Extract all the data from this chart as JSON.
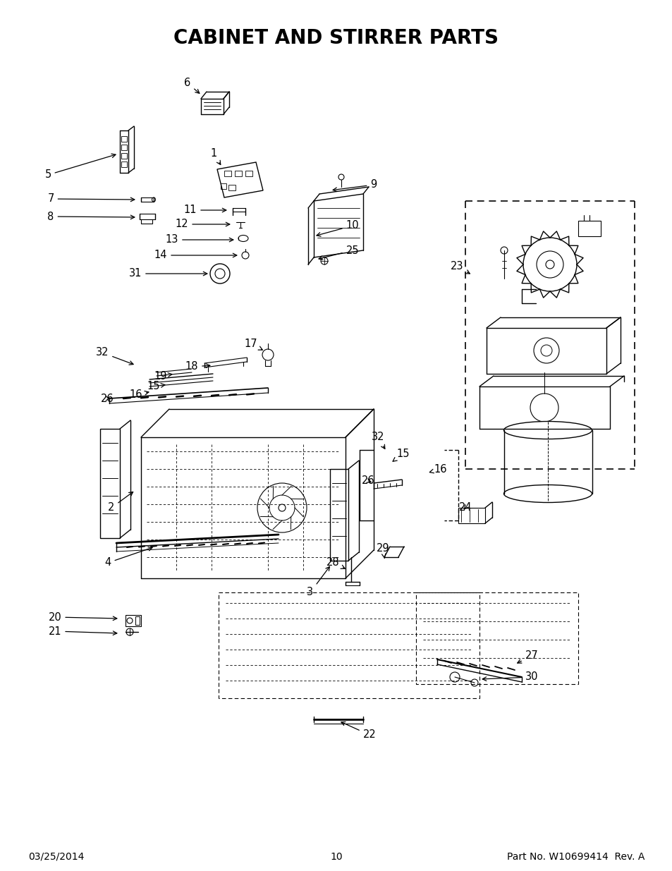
{
  "title": "CABINET AND STIRRER PARTS",
  "title_fontsize": 20,
  "title_fontweight": "bold",
  "footer_left": "03/25/2014",
  "footer_center": "10",
  "footer_right": "Part No. W10699414  Rev. A",
  "footer_fontsize": 10,
  "background_color": "#ffffff"
}
